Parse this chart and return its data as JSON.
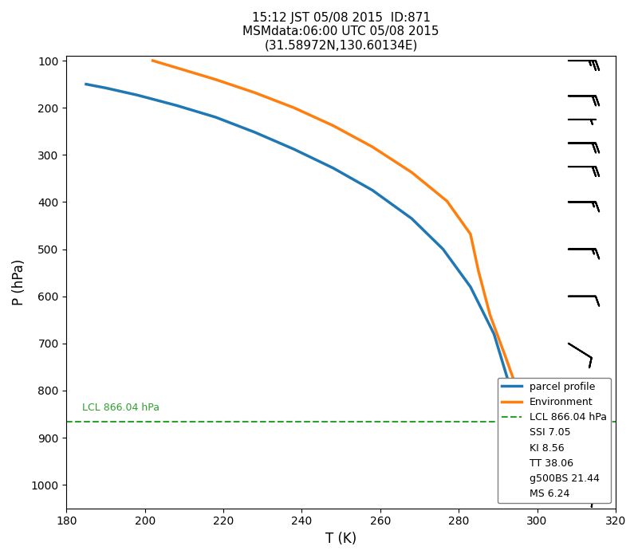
{
  "title": "15:12 JST 05/08 2015  ID:871\nMSMdata:06:00 UTC 05/08 2015\n(31.58972N,130.60134E)",
  "xlabel": "T (K)",
  "ylabel": "P (hPa)",
  "xlim": [
    180,
    320
  ],
  "ylim": [
    1050,
    90
  ],
  "xticks": [
    180,
    200,
    220,
    240,
    260,
    280,
    300,
    320
  ],
  "yticks": [
    100,
    200,
    300,
    400,
    500,
    600,
    700,
    800,
    900,
    1000
  ],
  "parcel_T": [
    185,
    190,
    198,
    208,
    218,
    228,
    238,
    248,
    258,
    268,
    276,
    283,
    289,
    293,
    295
  ],
  "parcel_P": [
    150,
    158,
    173,
    195,
    220,
    252,
    288,
    328,
    375,
    435,
    500,
    580,
    680,
    790,
    930
  ],
  "env_T": [
    202,
    208,
    218,
    228,
    238,
    248,
    258,
    268,
    277,
    283,
    285,
    288,
    292,
    298,
    302
  ],
  "env_P": [
    100,
    115,
    140,
    168,
    200,
    238,
    283,
    337,
    398,
    468,
    545,
    640,
    730,
    870,
    1020
  ],
  "lcl_pressure": 866.04,
  "lcl_label": "LCL 866.04 hPa",
  "parcel_color": "#1f77b4",
  "env_color": "#ff7f0e",
  "lcl_color": "#2ca02c",
  "legend_labels": [
    "parcel profile",
    "Environment",
    "LCL 866.04 hPa"
  ],
  "extra_text": [
    "SSI 7.05",
    "KI 8.56",
    "TT 38.06",
    "g500BS 21.44",
    "MS 6.24"
  ],
  "wind_barbs": [
    {
      "p": 100,
      "T": 308,
      "u": -25,
      "v": 0
    },
    {
      "p": 175,
      "T": 308,
      "u": -20,
      "v": 0
    },
    {
      "p": 225,
      "T": 308,
      "u": -5,
      "v": 0
    },
    {
      "p": 275,
      "T": 308,
      "u": -20,
      "v": 0
    },
    {
      "p": 325,
      "T": 308,
      "u": -20,
      "v": 0
    },
    {
      "p": 400,
      "T": 308,
      "u": -15,
      "v": 0
    },
    {
      "p": 500,
      "T": 308,
      "u": -15,
      "v": 0
    },
    {
      "p": 600,
      "T": 308,
      "u": -10,
      "v": 0
    },
    {
      "p": 700,
      "T": 308,
      "u": -8,
      "v": 5
    },
    {
      "p": 850,
      "T": 312,
      "u": 0,
      "v": 0
    },
    {
      "p": 925,
      "T": 312,
      "u": -5,
      "v": 5
    },
    {
      "p": 1000,
      "T": 308,
      "u": -10,
      "v": 5
    }
  ]
}
